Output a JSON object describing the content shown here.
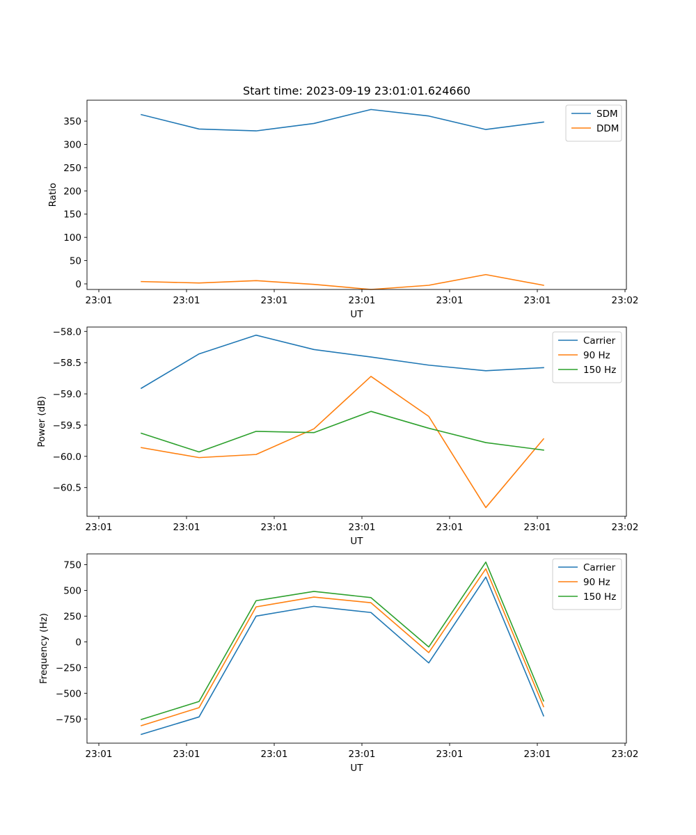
{
  "figure_title": "Start time: 2023-09-19 23:01:01.624660",
  "chart_data": [
    {
      "type": "line",
      "title": "Start time: 2023-09-19 23:01:01.624660",
      "xlabel": "UT",
      "ylabel": "Ratio",
      "x_tick_labels": [
        "23:01",
        "23:01",
        "23:01",
        "23:01",
        "23:01",
        "23:01",
        "23:02"
      ],
      "y_ticks": [
        0,
        50,
        100,
        150,
        200,
        250,
        300,
        350
      ],
      "y_tick_labels": [
        "0",
        "50",
        "100",
        "150",
        "200",
        "250",
        "300",
        "350"
      ],
      "ylim": [
        -12,
        395
      ],
      "legend_position": "top-right",
      "series": [
        {
          "name": "SDM",
          "color": "#1f77b4",
          "values": [
            364,
            333,
            329,
            345,
            375,
            361,
            332,
            348
          ]
        },
        {
          "name": "DDM",
          "color": "#ff7f0e",
          "values": [
            5,
            2,
            7,
            -1,
            -12,
            -3,
            20,
            -3
          ]
        }
      ]
    },
    {
      "type": "line",
      "title": "",
      "xlabel": "UT",
      "ylabel": "Power (dB)",
      "x_tick_labels": [
        "23:01",
        "23:01",
        "23:01",
        "23:01",
        "23:01",
        "23:01",
        "23:02"
      ],
      "y_ticks": [
        -58.0,
        -58.5,
        -59.0,
        -59.5,
        -60.0,
        -60.5
      ],
      "y_tick_labels": [
        "−58.0",
        "−58.5",
        "−59.0",
        "−59.5",
        "−60.0",
        "−60.5"
      ],
      "ylim": [
        -60.96,
        -57.93
      ],
      "legend_position": "top-right",
      "series": [
        {
          "name": "Carrier",
          "color": "#1f77b4",
          "values": [
            -58.91,
            -58.36,
            -58.06,
            -58.29,
            -58.41,
            -58.54,
            -58.63,
            -58.58
          ]
        },
        {
          "name": "90 Hz",
          "color": "#ff7f0e",
          "values": [
            -59.86,
            -60.02,
            -59.97,
            -59.56,
            -58.72,
            -59.36,
            -60.82,
            -59.72
          ]
        },
        {
          "name": "150 Hz",
          "color": "#2ca02c",
          "values": [
            -59.63,
            -59.93,
            -59.6,
            -59.62,
            -59.28,
            -59.55,
            -59.78,
            -59.9
          ]
        }
      ]
    },
    {
      "type": "line",
      "title": "",
      "xlabel": "UT",
      "ylabel": "Frequency (Hz)",
      "x_tick_labels": [
        "23:01",
        "23:01",
        "23:01",
        "23:01",
        "23:01",
        "23:01",
        "23:02"
      ],
      "y_ticks": [
        -750,
        -500,
        -250,
        0,
        250,
        500,
        750
      ],
      "y_tick_labels": [
        "−750",
        "−500",
        "−250",
        "0",
        "250",
        "500",
        "750"
      ],
      "ylim": [
        -985,
        855
      ],
      "legend_position": "top-right",
      "series": [
        {
          "name": "Carrier",
          "color": "#1f77b4",
          "values": [
            -900,
            -730,
            250,
            345,
            285,
            -205,
            630,
            -720
          ]
        },
        {
          "name": "90 Hz",
          "color": "#ff7f0e",
          "values": [
            -815,
            -640,
            340,
            435,
            380,
            -105,
            710,
            -630
          ]
        },
        {
          "name": "150 Hz",
          "color": "#2ca02c",
          "values": [
            -755,
            -580,
            400,
            490,
            430,
            -50,
            775,
            -575
          ]
        }
      ]
    }
  ]
}
